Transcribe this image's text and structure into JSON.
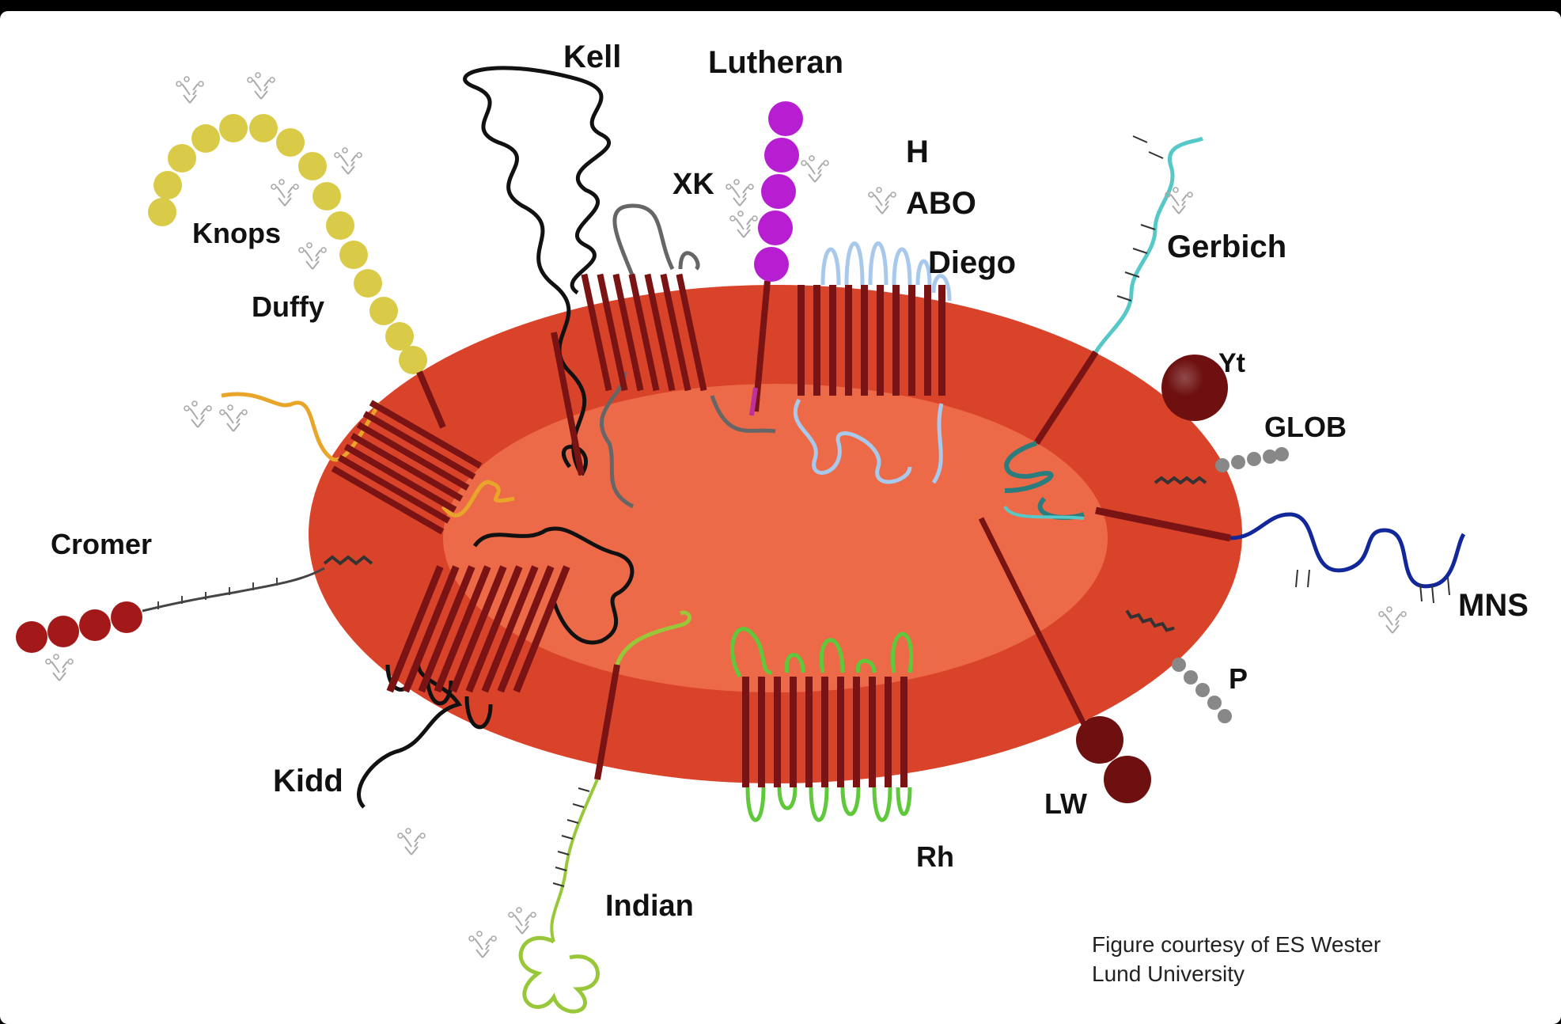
{
  "diagram": {
    "labels": {
      "kell": "Kell",
      "lutheran": "Lutheran",
      "xk": "XK",
      "h": "H",
      "abo": "ABO",
      "diego": "Diego",
      "gerbich": "Gerbich",
      "knops": "Knops",
      "duffy": "Duffy",
      "yt": "Yt",
      "glob": "GLOB",
      "cromer": "Cromer",
      "mns": "MNS",
      "p": "P",
      "kidd": "Kidd",
      "lw": "LW",
      "rh": "Rh",
      "indian": "Indian"
    },
    "credit": {
      "line1": "Figure courtesy of ES Wester",
      "line2": "Lund University"
    }
  },
  "colors": {
    "background": "#000000",
    "panel": "#ffffff",
    "membrane": "#d9432a",
    "cytoplasm": "#ec6a47",
    "protein_dark": "#7a1414",
    "knops": "#d9cb47",
    "duffy": "#e9a52a",
    "lutheran": "#b71ed1",
    "diego": "#a8c8ec",
    "gerbich": "#57c8c8",
    "rh": "#5fc93b",
    "indian": "#98c83a",
    "mns": "#12289a",
    "glob_p": "#888888",
    "cromer": "#a31818",
    "lw_yt": "#6e1010"
  }
}
